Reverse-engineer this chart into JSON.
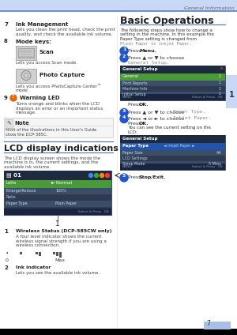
{
  "page_bg": "#ffffff",
  "header_color": "#c8d8f5",
  "header_line_color": "#5080d0",
  "header_text": "General Information",
  "footer_color": "#000000",
  "page_num_box_color": "#a8c0e8",
  "page_number": "7",
  "right_tab_color": "#c8d8f5",
  "warning_orange": "#ee6600",
  "note_bg": "#f5f5f5",
  "note_border": "#cccccc",
  "lcd_dark": "#2d3a50",
  "lcd_top": "#1e2a3e",
  "lcd_green": "#4a9a3a",
  "lcd_blue_hl": "#2255aa",
  "lcd_bottom": "#1a2440",
  "lcd_text": "#ccddee",
  "lcd_edge": "#445566",
  "step_circle": "#2255cc",
  "mono_color": "#888888",
  "scan_bg": "#d0d0d0",
  "scan_border": "#aaaaaa",
  "divider_color": "#4472c4",
  "col_divider": "#dddddd"
}
